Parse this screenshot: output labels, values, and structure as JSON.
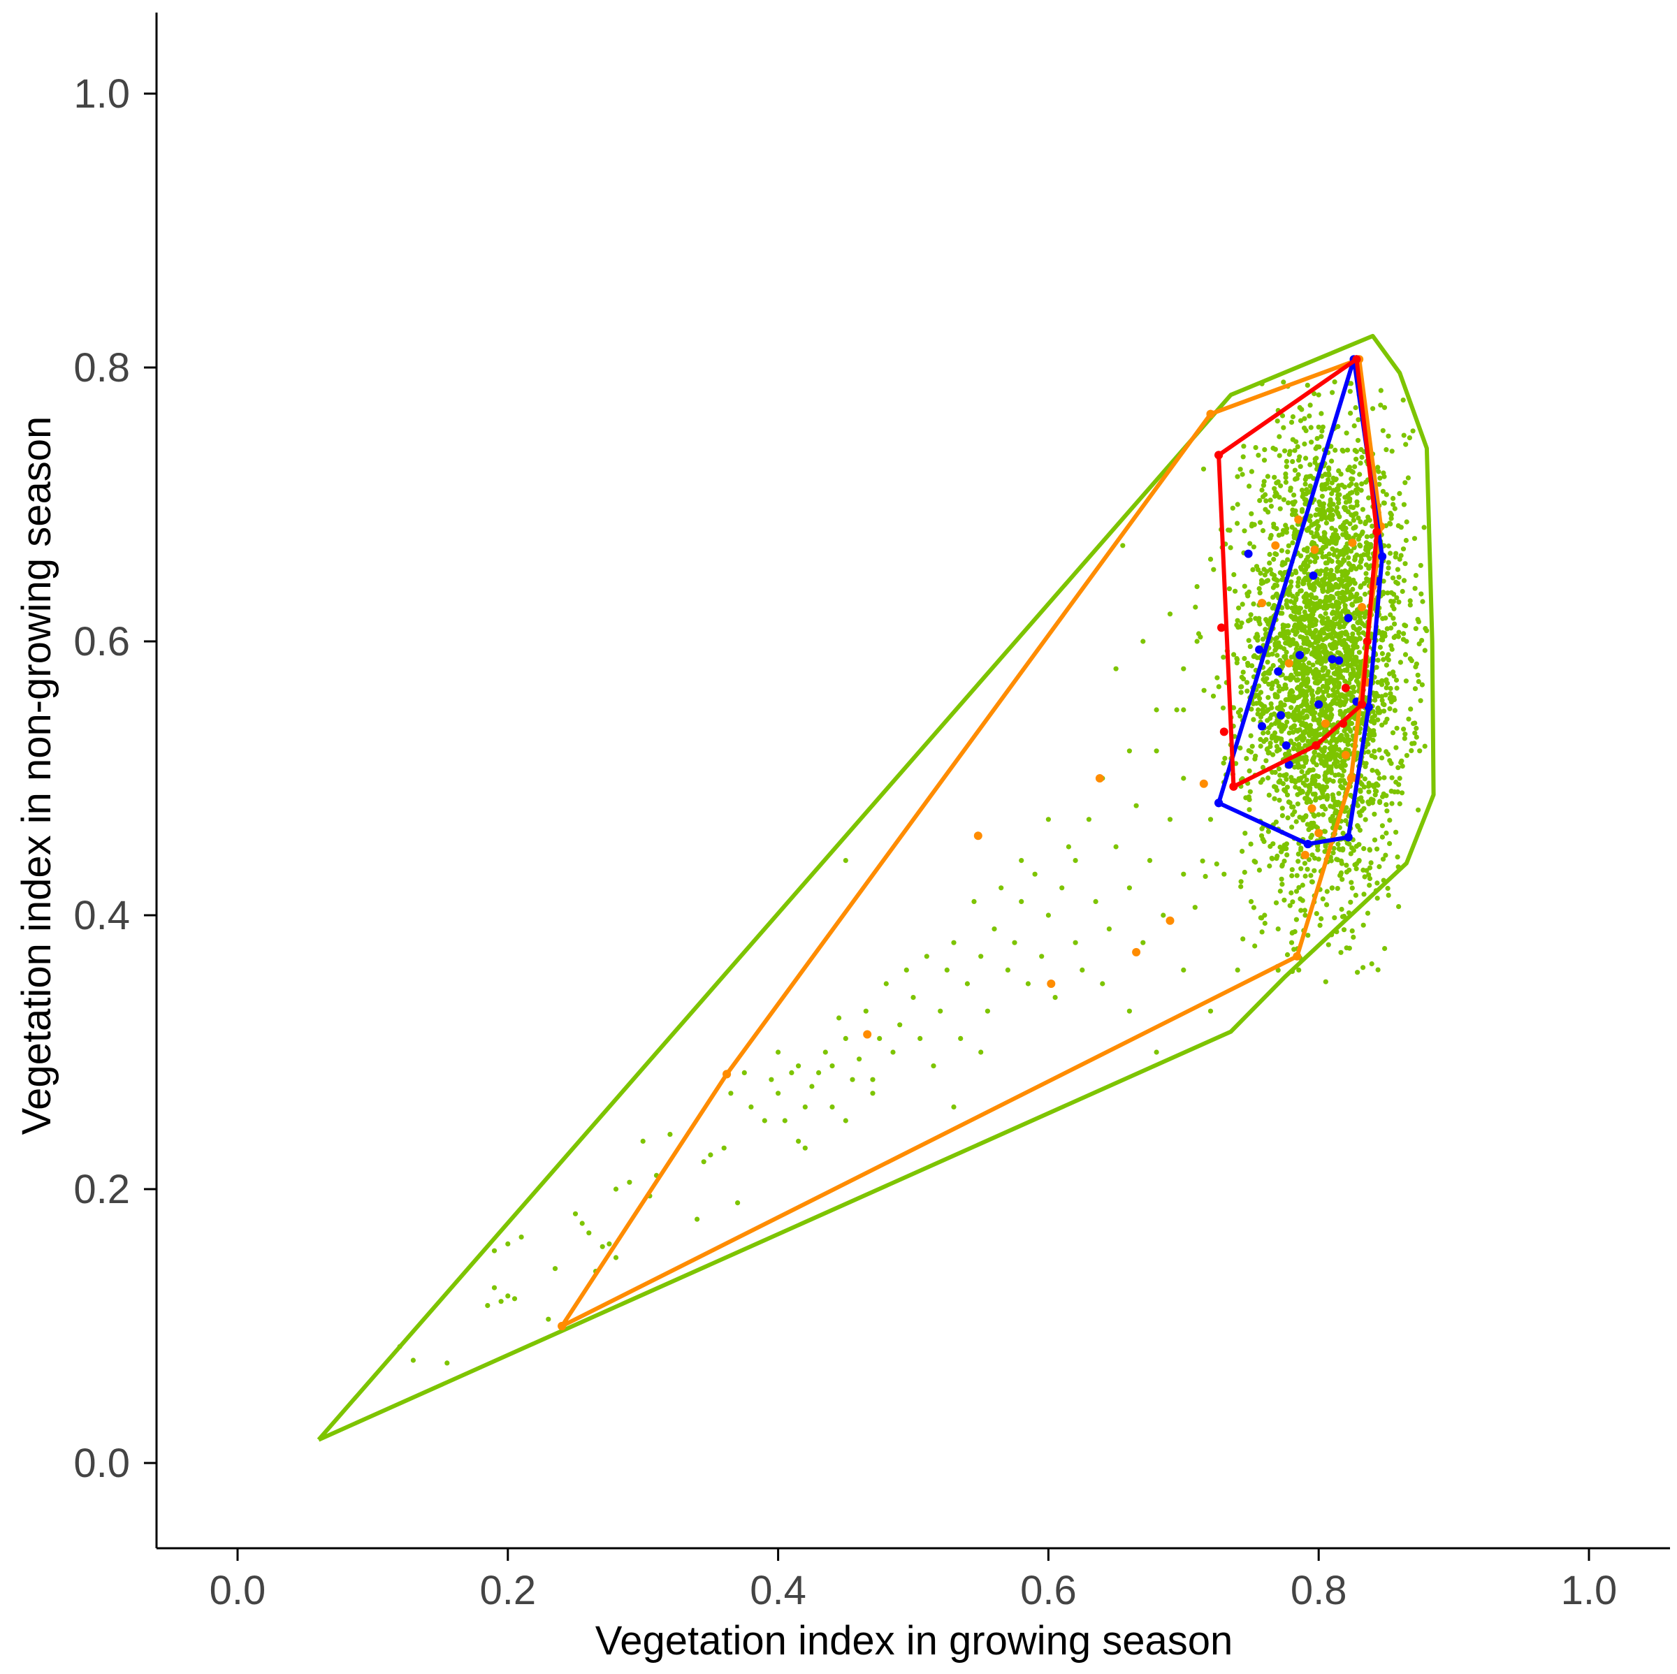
{
  "chart_data": {
    "type": "scatter",
    "title": "",
    "xlabel": "Vegetation index in growing season",
    "ylabel": "Vegetation index in non-growing season",
    "xlim": [
      -0.06,
      1.06
    ],
    "ylim": [
      -0.06,
      1.06
    ],
    "x_ticks": [
      0.0,
      0.2,
      0.4,
      0.6,
      0.8,
      1.0
    ],
    "y_ticks": [
      0.0,
      0.2,
      0.4,
      0.6,
      0.8,
      1.0
    ],
    "x_tick_labels": [
      "0.0",
      "0.2",
      "0.4",
      "0.6",
      "0.8",
      "1.0"
    ],
    "y_tick_labels": [
      "0.0",
      "0.2",
      "0.4",
      "0.6",
      "0.8",
      "1.0"
    ],
    "grid": false,
    "legend": "none",
    "series": [
      {
        "name": "green",
        "color": "#7DC400",
        "cluster": {
          "count": 3000,
          "cx": 0.805,
          "cy": 0.585,
          "sx": 0.03,
          "sy": 0.085,
          "xrange": [
            0.7,
            0.88
          ],
          "yrange": [
            0.35,
            0.79
          ]
        },
        "points": [
          [
            0.12,
            0.085
          ],
          [
            0.13,
            0.075
          ],
          [
            0.155,
            0.073
          ],
          [
            0.185,
            0.115
          ],
          [
            0.19,
            0.128
          ],
          [
            0.195,
            0.118
          ],
          [
            0.2,
            0.122
          ],
          [
            0.205,
            0.12
          ],
          [
            0.19,
            0.155
          ],
          [
            0.2,
            0.16
          ],
          [
            0.21,
            0.165
          ],
          [
            0.23,
            0.105
          ],
          [
            0.235,
            0.142
          ],
          [
            0.25,
            0.182
          ],
          [
            0.255,
            0.175
          ],
          [
            0.26,
            0.168
          ],
          [
            0.265,
            0.14
          ],
          [
            0.27,
            0.158
          ],
          [
            0.275,
            0.16
          ],
          [
            0.28,
            0.15
          ],
          [
            0.28,
            0.2
          ],
          [
            0.29,
            0.205
          ],
          [
            0.3,
            0.235
          ],
          [
            0.305,
            0.195
          ],
          [
            0.31,
            0.21
          ],
          [
            0.32,
            0.24
          ],
          [
            0.34,
            0.178
          ],
          [
            0.345,
            0.22
          ],
          [
            0.35,
            0.225
          ],
          [
            0.36,
            0.23
          ],
          [
            0.365,
            0.27
          ],
          [
            0.37,
            0.19
          ],
          [
            0.375,
            0.285
          ],
          [
            0.38,
            0.26
          ],
          [
            0.39,
            0.25
          ],
          [
            0.395,
            0.28
          ],
          [
            0.4,
            0.27
          ],
          [
            0.405,
            0.25
          ],
          [
            0.41,
            0.285
          ],
          [
            0.415,
            0.29
          ],
          [
            0.415,
            0.235
          ],
          [
            0.42,
            0.26
          ],
          [
            0.425,
            0.275
          ],
          [
            0.43,
            0.285
          ],
          [
            0.435,
            0.3
          ],
          [
            0.44,
            0.29
          ],
          [
            0.44,
            0.26
          ],
          [
            0.445,
            0.325
          ],
          [
            0.45,
            0.31
          ],
          [
            0.45,
            0.25
          ],
          [
            0.455,
            0.28
          ],
          [
            0.46,
            0.295
          ],
          [
            0.465,
            0.33
          ],
          [
            0.47,
            0.27
          ],
          [
            0.475,
            0.31
          ],
          [
            0.48,
            0.35
          ],
          [
            0.485,
            0.3
          ],
          [
            0.49,
            0.32
          ],
          [
            0.495,
            0.36
          ],
          [
            0.5,
            0.34
          ],
          [
            0.505,
            0.31
          ],
          [
            0.51,
            0.37
          ],
          [
            0.515,
            0.29
          ],
          [
            0.52,
            0.33
          ],
          [
            0.525,
            0.36
          ],
          [
            0.53,
            0.38
          ],
          [
            0.535,
            0.31
          ],
          [
            0.54,
            0.35
          ],
          [
            0.545,
            0.41
          ],
          [
            0.55,
            0.37
          ],
          [
            0.555,
            0.33
          ],
          [
            0.56,
            0.39
          ],
          [
            0.565,
            0.42
          ],
          [
            0.57,
            0.36
          ],
          [
            0.575,
            0.38
          ],
          [
            0.58,
            0.41
          ],
          [
            0.585,
            0.35
          ],
          [
            0.59,
            0.43
          ],
          [
            0.595,
            0.37
          ],
          [
            0.6,
            0.4
          ],
          [
            0.605,
            0.34
          ],
          [
            0.61,
            0.42
          ],
          [
            0.615,
            0.45
          ],
          [
            0.62,
            0.38
          ],
          [
            0.625,
            0.36
          ],
          [
            0.63,
            0.47
          ],
          [
            0.635,
            0.41
          ],
          [
            0.64,
            0.5
          ],
          [
            0.645,
            0.39
          ],
          [
            0.65,
            0.45
          ],
          [
            0.655,
            0.67
          ],
          [
            0.66,
            0.42
          ],
          [
            0.665,
            0.48
          ],
          [
            0.67,
            0.38
          ],
          [
            0.675,
            0.44
          ],
          [
            0.68,
            0.52
          ],
          [
            0.685,
            0.4
          ],
          [
            0.69,
            0.47
          ],
          [
            0.695,
            0.55
          ],
          [
            0.7,
            0.43
          ],
          [
            0.45,
            0.44
          ],
          [
            0.4,
            0.3
          ],
          [
            0.42,
            0.23
          ],
          [
            0.47,
            0.28
          ],
          [
            0.53,
            0.26
          ],
          [
            0.55,
            0.3
          ],
          [
            0.58,
            0.44
          ],
          [
            0.6,
            0.47
          ],
          [
            0.62,
            0.44
          ],
          [
            0.64,
            0.35
          ],
          [
            0.66,
            0.33
          ],
          [
            0.68,
            0.3
          ],
          [
            0.7,
            0.36
          ],
          [
            0.72,
            0.33
          ],
          [
            0.74,
            0.36
          ],
          [
            0.76,
            0.4
          ],
          [
            0.78,
            0.38
          ],
          [
            0.65,
            0.58
          ],
          [
            0.67,
            0.6
          ],
          [
            0.69,
            0.62
          ],
          [
            0.7,
            0.58
          ],
          [
            0.71,
            0.64
          ],
          [
            0.68,
            0.55
          ],
          [
            0.66,
            0.52
          ],
          [
            0.7,
            0.5
          ],
          [
            0.72,
            0.47
          ],
          [
            0.73,
            0.43
          ],
          [
            0.75,
            0.41
          ],
          [
            0.77,
            0.39
          ],
          [
            0.79,
            0.4
          ],
          [
            0.81,
            0.42
          ],
          [
            0.83,
            0.44
          ],
          [
            0.85,
            0.46
          ],
          [
            0.86,
            0.5
          ],
          [
            0.87,
            0.54
          ],
          [
            0.865,
            0.6
          ],
          [
            0.86,
            0.66
          ],
          [
            0.855,
            0.7
          ],
          [
            0.85,
            0.74
          ],
          [
            0.84,
            0.77
          ],
          [
            0.83,
            0.78
          ],
          [
            0.8,
            0.78
          ],
          [
            0.78,
            0.76
          ],
          [
            0.76,
            0.74
          ],
          [
            0.74,
            0.7
          ],
          [
            0.72,
            0.66
          ],
          [
            0.71,
            0.6
          ],
          [
            0.7,
            0.55
          ]
        ],
        "hull": [
          [
            0.06,
            0.017
          ],
          [
            0.735,
            0.315
          ],
          [
            0.775,
            0.355
          ],
          [
            0.865,
            0.438
          ],
          [
            0.885,
            0.488
          ],
          [
            0.884,
            0.6
          ],
          [
            0.88,
            0.741
          ],
          [
            0.86,
            0.796
          ],
          [
            0.84,
            0.823
          ],
          [
            0.735,
            0.78
          ],
          [
            0.06,
            0.017
          ]
        ]
      },
      {
        "name": "orange",
        "color": "#FF8C00",
        "points": [
          [
            0.24,
            0.1
          ],
          [
            0.362,
            0.284
          ],
          [
            0.466,
            0.313
          ],
          [
            0.548,
            0.458
          ],
          [
            0.602,
            0.35
          ],
          [
            0.638,
            0.5
          ],
          [
            0.665,
            0.373
          ],
          [
            0.69,
            0.396
          ],
          [
            0.715,
            0.496
          ],
          [
            0.72,
            0.766
          ],
          [
            0.758,
            0.628
          ],
          [
            0.768,
            0.67
          ],
          [
            0.778,
            0.584
          ],
          [
            0.785,
            0.689
          ],
          [
            0.79,
            0.444
          ],
          [
            0.795,
            0.478
          ],
          [
            0.797,
            0.667
          ],
          [
            0.8,
            0.46
          ],
          [
            0.805,
            0.54
          ],
          [
            0.82,
            0.517
          ],
          [
            0.825,
            0.672
          ],
          [
            0.828,
            0.5
          ],
          [
            0.832,
            0.625
          ],
          [
            0.836,
            0.57
          ],
          [
            0.84,
            0.64
          ],
          [
            0.843,
            0.68
          ]
        ],
        "hull": [
          [
            0.24,
            0.1
          ],
          [
            0.784,
            0.37
          ],
          [
            0.824,
            0.5
          ],
          [
            0.846,
            0.684
          ],
          [
            0.83,
            0.806
          ],
          [
            0.72,
            0.766
          ],
          [
            0.362,
            0.284
          ],
          [
            0.24,
            0.1
          ]
        ]
      },
      {
        "name": "blue",
        "color": "#0000FF",
        "points": [
          [
            0.748,
            0.664
          ],
          [
            0.756,
            0.594
          ],
          [
            0.758,
            0.538
          ],
          [
            0.77,
            0.578
          ],
          [
            0.772,
            0.546
          ],
          [
            0.776,
            0.524
          ],
          [
            0.778,
            0.51
          ],
          [
            0.786,
            0.59
          ],
          [
            0.796,
            0.648
          ],
          [
            0.8,
            0.554
          ],
          [
            0.81,
            0.587
          ],
          [
            0.815,
            0.586
          ],
          [
            0.822,
            0.617
          ],
          [
            0.828,
            0.556
          ],
          [
            0.843,
            0.644
          ],
          [
            0.726,
            0.482
          ],
          [
            0.792,
            0.452
          ],
          [
            0.822,
            0.457
          ],
          [
            0.837,
            0.552
          ],
          [
            0.847,
            0.662
          ]
        ],
        "hull": [
          [
            0.726,
            0.482
          ],
          [
            0.792,
            0.452
          ],
          [
            0.822,
            0.457
          ],
          [
            0.837,
            0.552
          ],
          [
            0.847,
            0.662
          ],
          [
            0.826,
            0.806
          ],
          [
            0.726,
            0.482
          ]
        ]
      },
      {
        "name": "red",
        "color": "#FF0000",
        "points": [
          [
            0.726,
            0.736
          ],
          [
            0.728,
            0.61
          ],
          [
            0.73,
            0.534
          ],
          [
            0.737,
            0.494
          ],
          [
            0.798,
            0.524
          ],
          [
            0.818,
            0.54
          ],
          [
            0.82,
            0.566
          ],
          [
            0.832,
            0.554
          ],
          [
            0.836,
            0.6
          ],
          [
            0.843,
            0.68
          ],
          [
            0.828,
            0.806
          ]
        ],
        "hull": [
          [
            0.726,
            0.736
          ],
          [
            0.737,
            0.494
          ],
          [
            0.798,
            0.524
          ],
          [
            0.832,
            0.554
          ],
          [
            0.843,
            0.68
          ],
          [
            0.828,
            0.806
          ],
          [
            0.726,
            0.736
          ]
        ]
      }
    ]
  }
}
